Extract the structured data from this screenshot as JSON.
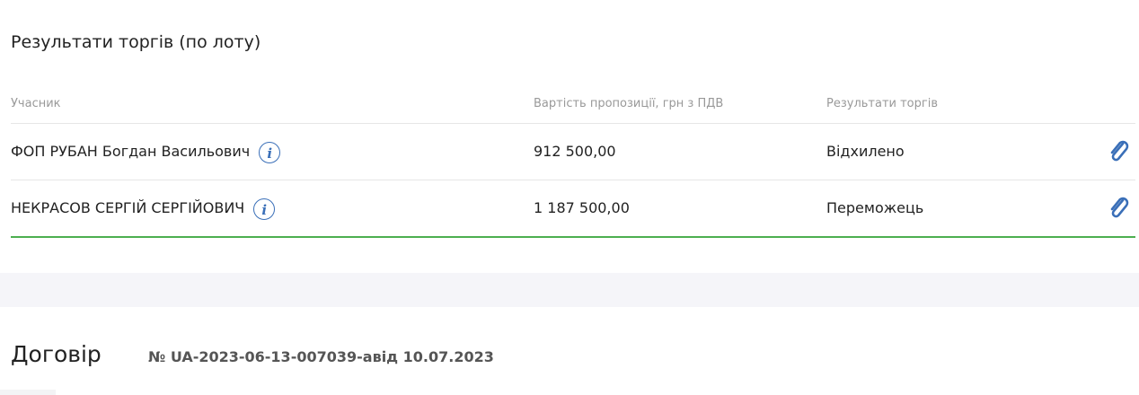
{
  "results": {
    "title": "Результати торгів (по лоту)",
    "columns": [
      "Учасник",
      "Вартість пропозиції, грн з ПДВ",
      "Результати торгів"
    ],
    "rows": [
      {
        "participant": "ФОП РУБАН Богдан Васильович",
        "info_icon": "i",
        "price": "912 500,00",
        "result": "Відхилено",
        "attachment_icon": "paperclip-icon"
      },
      {
        "participant": "НЕКРАСОВ СЕРГІЙ СЕРГІЙОВИЧ",
        "info_icon": "i",
        "price": "1 187 500,00",
        "result": "Переможець",
        "attachment_icon": "paperclip-icon"
      }
    ],
    "winner_line_color": "#4caf50",
    "accent": "#3a6fb8"
  },
  "contract": {
    "title": "Договір",
    "number": "№ UA-2023-06-13-007039-aвід 10.07.2023"
  }
}
